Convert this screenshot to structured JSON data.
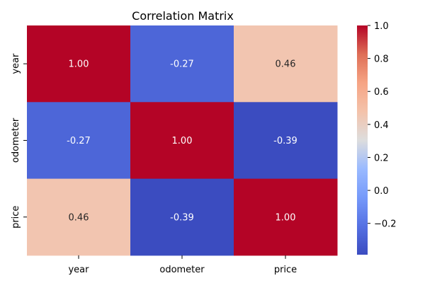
{
  "chart_data": {
    "type": "heatmap",
    "title": "Correlation Matrix",
    "xlabel": "",
    "ylabel": "",
    "x_categories": [
      "year",
      "odometer",
      "price"
    ],
    "y_categories": [
      "year",
      "odometer",
      "price"
    ],
    "values": [
      [
        1.0,
        -0.27,
        0.46
      ],
      [
        -0.27,
        1.0,
        -0.39
      ],
      [
        0.46,
        -0.39,
        1.0
      ]
    ],
    "cell_labels": [
      [
        "1.00",
        "-0.27",
        "0.46"
      ],
      [
        "-0.27",
        "1.00",
        "-0.39"
      ],
      [
        "0.46",
        "-0.39",
        "1.00"
      ]
    ],
    "colormap": "coolwarm",
    "colorbar": {
      "min": -0.39,
      "max": 1.0,
      "ticks": [
        -0.2,
        0.0,
        0.2,
        0.4,
        0.6,
        0.8,
        1.0
      ],
      "tick_labels": [
        "−0.2",
        "0.0",
        "0.2",
        "0.4",
        "0.6",
        "0.8",
        "1.0"
      ]
    }
  }
}
